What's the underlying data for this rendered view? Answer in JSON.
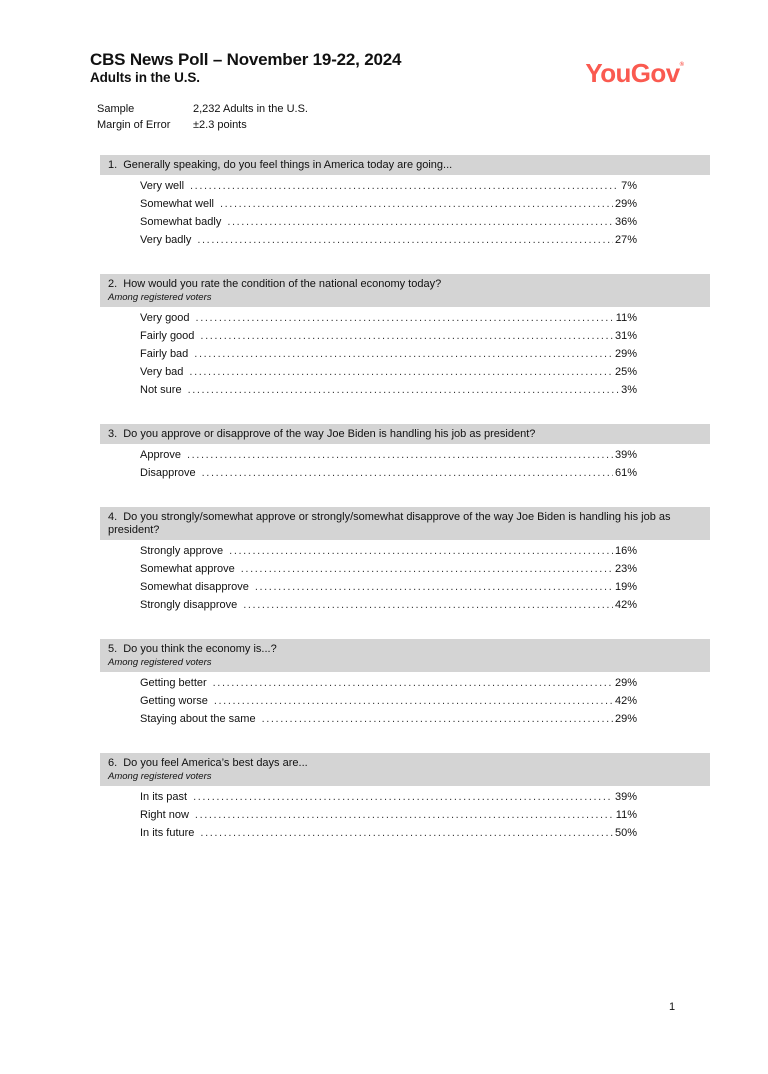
{
  "theme": {
    "accent": "#fa5a50",
    "band": "#d4d4d4",
    "ink": "#111111"
  },
  "header": {
    "title": "CBS News Poll – November 19-22, 2024",
    "subtitle": "Adults in the U.S.",
    "logo_text": "YouGov",
    "logo_mark": "®"
  },
  "meta": {
    "rows": [
      {
        "label": "Sample",
        "value": "2,232 Adults in the U.S."
      },
      {
        "label": "Margin of Error",
        "value": "±2.3 points"
      }
    ]
  },
  "questions": [
    {
      "number": "1.",
      "text": "Generally speaking, do you feel things in America today are going...",
      "note": "",
      "answers": [
        {
          "label": "Very well",
          "value": "7%"
        },
        {
          "label": "Somewhat well",
          "value": "29%"
        },
        {
          "label": "Somewhat badly",
          "value": "36%"
        },
        {
          "label": "Very badly",
          "value": "27%"
        }
      ]
    },
    {
      "number": "2.",
      "text": "How would you rate the condition of the national economy today?",
      "note": "Among registered voters",
      "answers": [
        {
          "label": "Very good",
          "value": "11%"
        },
        {
          "label": "Fairly good",
          "value": "31%"
        },
        {
          "label": "Fairly bad",
          "value": "29%"
        },
        {
          "label": "Very bad",
          "value": "25%"
        },
        {
          "label": "Not sure",
          "value": "3%"
        }
      ]
    },
    {
      "number": "3.",
      "text": "Do you approve or disapprove of the way Joe Biden is handling his job as president?",
      "note": "",
      "answers": [
        {
          "label": "Approve",
          "value": "39%"
        },
        {
          "label": "Disapprove",
          "value": "61%"
        }
      ]
    },
    {
      "number": "4.",
      "text": "Do you strongly/somewhat approve or strongly/somewhat disapprove of the way Joe Biden is handling his job as president?",
      "note": "",
      "answers": [
        {
          "label": "Strongly approve",
          "value": "16%"
        },
        {
          "label": "Somewhat approve",
          "value": "23%"
        },
        {
          "label": "Somewhat disapprove",
          "value": "19%"
        },
        {
          "label": "Strongly disapprove",
          "value": "42%"
        }
      ]
    },
    {
      "number": "5.",
      "text": "Do you think the economy is...?",
      "note": "Among registered voters",
      "answers": [
        {
          "label": "Getting better",
          "value": "29%"
        },
        {
          "label": "Getting worse",
          "value": "42%"
        },
        {
          "label": "Staying about the same",
          "value": "29%"
        }
      ]
    },
    {
      "number": "6.",
      "text": "Do you feel America’s best days are...",
      "note": "Among registered voters",
      "answers": [
        {
          "label": "In its past",
          "value": "39%"
        },
        {
          "label": "Right now",
          "value": "11%"
        },
        {
          "label": "In its future",
          "value": "50%"
        }
      ]
    }
  ],
  "footer": {
    "page_number": "1"
  }
}
